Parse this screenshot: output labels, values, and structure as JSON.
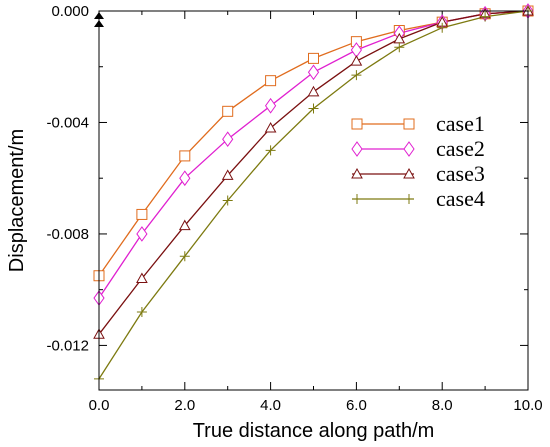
{
  "chart_data": {
    "type": "line",
    "xlabel": "True distance along path/m",
    "ylabel": "Displacement/m",
    "xlim": [
      0,
      10
    ],
    "ylim": [
      -0.0136,
      0.0
    ],
    "x_ticks": [
      0,
      2,
      4,
      6,
      8,
      10
    ],
    "x_tick_labels": [
      "0.0",
      "2.0",
      "4.0",
      "6.0",
      "8.0",
      "10.0"
    ],
    "y_ticks": [
      0.0,
      -0.004,
      -0.008,
      -0.012
    ],
    "y_tick_labels": [
      "0.000",
      "-0.004",
      "-0.008",
      "-0.012"
    ],
    "legend_position": "upper-right (inside plot)",
    "grid": false,
    "x": [
      0,
      1,
      2,
      3,
      4,
      5,
      6,
      7,
      8,
      9,
      10
    ],
    "series": [
      {
        "name": "case1",
        "color": "#e06c1e",
        "marker": "square",
        "values": [
          -0.0095,
          -0.0073,
          -0.0052,
          -0.0036,
          -0.0025,
          -0.0017,
          -0.0011,
          -0.0007,
          -0.0004,
          -0.0001,
          0.0
        ]
      },
      {
        "name": "case2",
        "color": "#e020d0",
        "marker": "diamond",
        "values": [
          -0.0103,
          -0.008,
          -0.006,
          -0.0046,
          -0.0034,
          -0.0022,
          -0.0014,
          -0.0008,
          -0.0004,
          -0.0001,
          0.0
        ]
      },
      {
        "name": "case3",
        "color": "#7a1010",
        "marker": "triangle",
        "values": [
          -0.0116,
          -0.0096,
          -0.0077,
          -0.0059,
          -0.0042,
          -0.0029,
          -0.0018,
          -0.001,
          -0.0004,
          -0.0001,
          0.0
        ]
      },
      {
        "name": "case4",
        "color": "#7d7a10",
        "marker": "plus",
        "values": [
          -0.0132,
          -0.0108,
          -0.0088,
          -0.0068,
          -0.005,
          -0.0035,
          -0.0023,
          -0.0013,
          -0.0006,
          -0.0002,
          0.0
        ]
      }
    ]
  }
}
